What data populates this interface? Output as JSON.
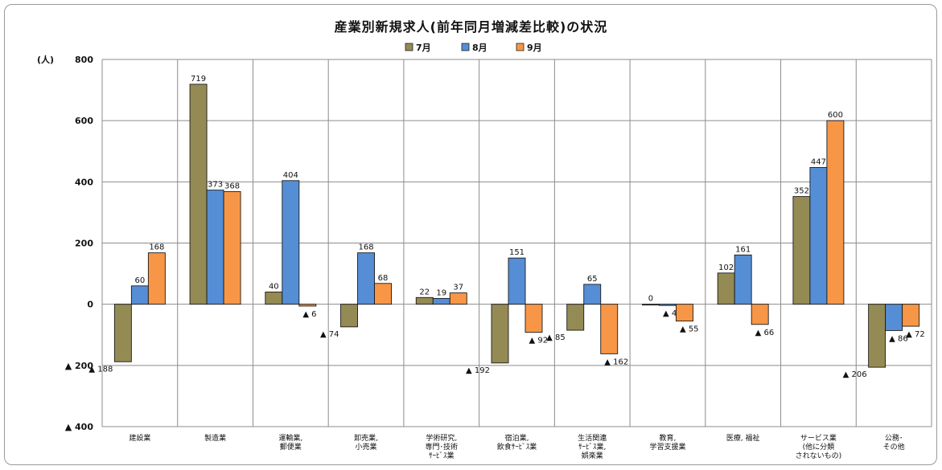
{
  "chart_data": {
    "type": "bar",
    "title": "産業別新規求人(前年同月増減差比較)の状況",
    "ylabel": "(人)",
    "ylim": [
      -400,
      800
    ],
    "yticks": [
      800,
      600,
      400,
      200,
      0,
      -200,
      -400
    ],
    "ytick_labels": [
      "800",
      "600",
      "400",
      "200",
      "0",
      "▲ 200",
      "▲ 400"
    ],
    "grid": true,
    "legend_position": "top",
    "categories": [
      [
        "建設業"
      ],
      [
        "製造業"
      ],
      [
        "運輸業,",
        "郵便業"
      ],
      [
        "卸売業,",
        "小売業"
      ],
      [
        "学術研究,",
        "専門･技術",
        "ｻｰﾋﾞｽ業"
      ],
      [
        "宿泊業,",
        "飲食ｻｰﾋﾞｽ業"
      ],
      [
        "生活関連",
        "ｻｰﾋﾞｽ業,",
        "娯楽業"
      ],
      [
        "教育,",
        "学習支援業"
      ],
      [
        "医療, 福祉"
      ],
      [
        "サービス業",
        "(他に分類",
        "されないもの)"
      ],
      [
        "公務･",
        "その他"
      ]
    ],
    "series": [
      {
        "name": "7月",
        "color": "#948A54",
        "values": [
          -188,
          719,
          40,
          -74,
          22,
          -192,
          -85,
          0,
          102,
          352,
          -206
        ],
        "labels": [
          "▲ 188",
          "719",
          "40",
          "▲ 74",
          "22",
          "▲ 192",
          "▲ 85",
          "0",
          "102",
          "352",
          "▲ 206"
        ]
      },
      {
        "name": "8月",
        "color": "#558ED5",
        "values": [
          60,
          373,
          404,
          168,
          19,
          151,
          65,
          -4,
          161,
          447,
          -86
        ],
        "labels": [
          "60",
          "373",
          "404",
          "168",
          "19",
          "151",
          "65",
          "▲ 4",
          "161",
          "447",
          "▲ 86"
        ]
      },
      {
        "name": "9月",
        "color": "#F79646",
        "values": [
          168,
          368,
          -6,
          68,
          37,
          -92,
          -162,
          -55,
          -66,
          600,
          -72
        ],
        "labels": [
          "168",
          "368",
          "▲ 6",
          "68",
          "37",
          "▲ 92",
          "▲ 162",
          "▲ 55",
          "▲ 66",
          "600",
          "▲ 72"
        ]
      }
    ]
  }
}
